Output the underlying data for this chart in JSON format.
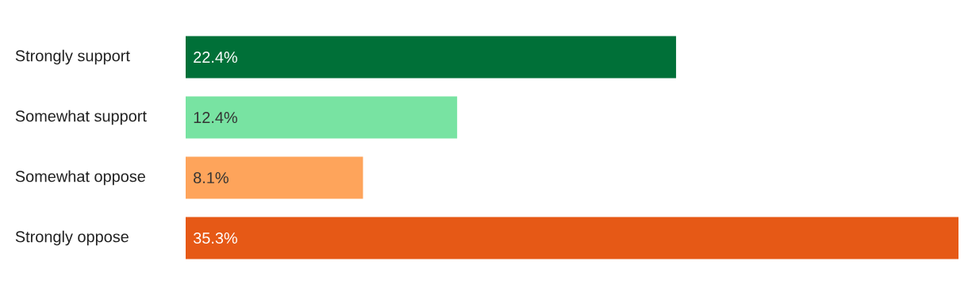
{
  "chart_data": {
    "type": "bar",
    "orientation": "horizontal",
    "categories": [
      "Strongly support",
      "Somewhat support",
      "Somewhat oppose",
      "Strongly oppose"
    ],
    "values": [
      22.4,
      12.4,
      8.1,
      35.3
    ],
    "colors": [
      "#007038",
      "#78e3a2",
      "#fea45b",
      "#e65916"
    ],
    "value_labels": [
      "22.4%",
      "12.4%",
      "8.1%",
      "35.3%"
    ],
    "xlim": [
      0,
      35.3
    ]
  }
}
